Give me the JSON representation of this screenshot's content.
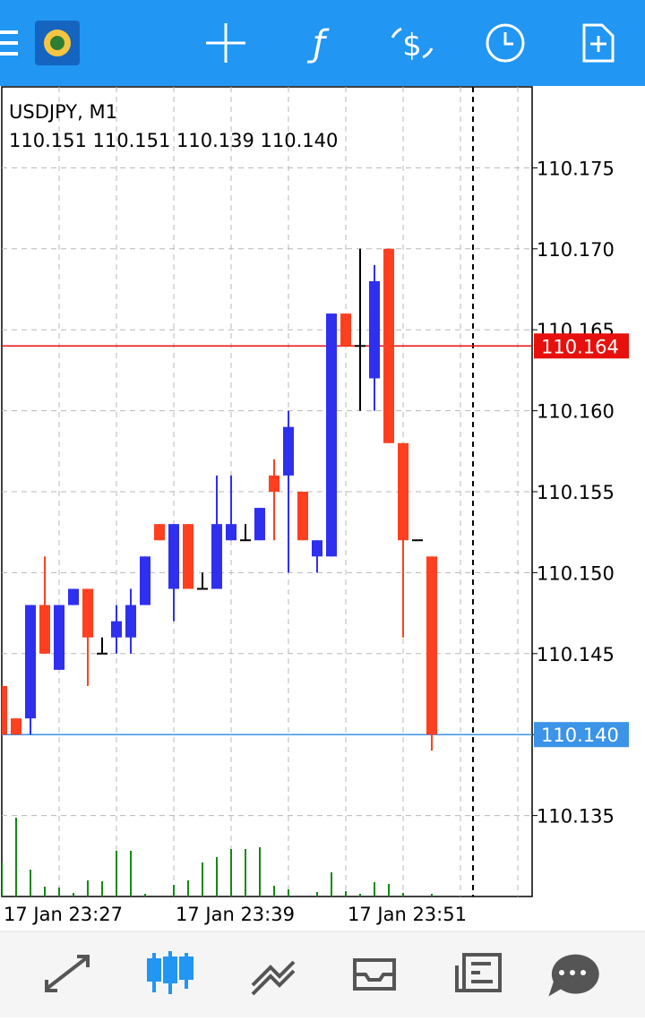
{
  "chart_data": {
    "type": "candlestick",
    "title": "USDJPY, M1",
    "ohlc_text": "110.151 110.151 110.139 110.140",
    "categories": [
      "17 Jan 23:27",
      null,
      null,
      null,
      null,
      null,
      null,
      null,
      null,
      null,
      null,
      null,
      "17 Jan 23:39",
      null,
      null,
      null,
      null,
      null,
      null,
      null,
      null,
      null,
      null,
      null,
      "17 Jan 23:51",
      null,
      null,
      null,
      null,
      null,
      null
    ],
    "open": [
      110.143,
      110.141,
      110.141,
      110.148,
      110.144,
      110.148,
      110.149,
      110.145,
      110.146,
      110.146,
      110.148,
      110.153,
      110.149,
      110.153,
      110.149,
      110.149,
      110.152,
      110.152,
      110.152,
      110.156,
      110.156,
      110.155,
      110.151,
      110.151,
      110.166,
      110.164,
      110.162,
      110.17,
      110.158,
      110.152,
      110.151
    ],
    "high": [
      110.143,
      110.141,
      110.148,
      110.151,
      110.148,
      110.149,
      110.149,
      110.146,
      110.148,
      110.149,
      110.151,
      110.153,
      110.153,
      110.153,
      110.15,
      110.156,
      110.156,
      110.153,
      110.154,
      110.157,
      110.16,
      110.155,
      110.152,
      110.166,
      110.166,
      110.17,
      110.169,
      110.17,
      110.158,
      110.152,
      110.151
    ],
    "low": [
      110.14,
      110.14,
      110.14,
      110.145,
      110.144,
      110.148,
      110.143,
      110.145,
      110.145,
      110.145,
      110.148,
      110.152,
      110.147,
      110.149,
      110.149,
      110.149,
      110.152,
      110.152,
      110.152,
      110.152,
      110.15,
      110.152,
      110.15,
      110.151,
      110.164,
      110.16,
      110.16,
      110.158,
      110.146,
      110.152,
      110.139
    ],
    "close": [
      110.14,
      110.14,
      110.148,
      110.145,
      110.148,
      110.149,
      110.146,
      110.145,
      110.147,
      110.148,
      110.151,
      110.152,
      110.153,
      110.149,
      110.149,
      110.153,
      110.153,
      110.152,
      110.154,
      110.155,
      110.159,
      110.152,
      110.152,
      110.166,
      110.164,
      110.164,
      110.168,
      110.158,
      110.152,
      110.152,
      110.14
    ],
    "volume": [
      38,
      88,
      30,
      11,
      10,
      4,
      18,
      17,
      51,
      51,
      3,
      0,
      13,
      18,
      38,
      44,
      53,
      53,
      55,
      12,
      8,
      0,
      5,
      27,
      6,
      3,
      16,
      14,
      4,
      0,
      3
    ],
    "up_color": "#2f2ff0",
    "down_color": "#ff4020",
    "doji_color": "#000000",
    "volume_color": "#128a12",
    "ylim": [
      110.13,
      110.18
    ],
    "yticks": [
      110.135,
      {
        "value": 110.14,
        "label": "110.140"
      },
      110.145,
      {
        "value": 110.15,
        "label": "110.150"
      },
      110.155,
      {
        "value": 110.16,
        "label": "110.160"
      },
      110.165,
      {
        "value": 110.17,
        "label": "110.170"
      },
      110.175
    ],
    "price_lines": [
      {
        "value": 110.164,
        "label": "110.164",
        "color": "#e8100c"
      },
      {
        "value": 110.14,
        "label": "110.140",
        "color": "#3b94e8"
      }
    ],
    "grid": true
  }
}
